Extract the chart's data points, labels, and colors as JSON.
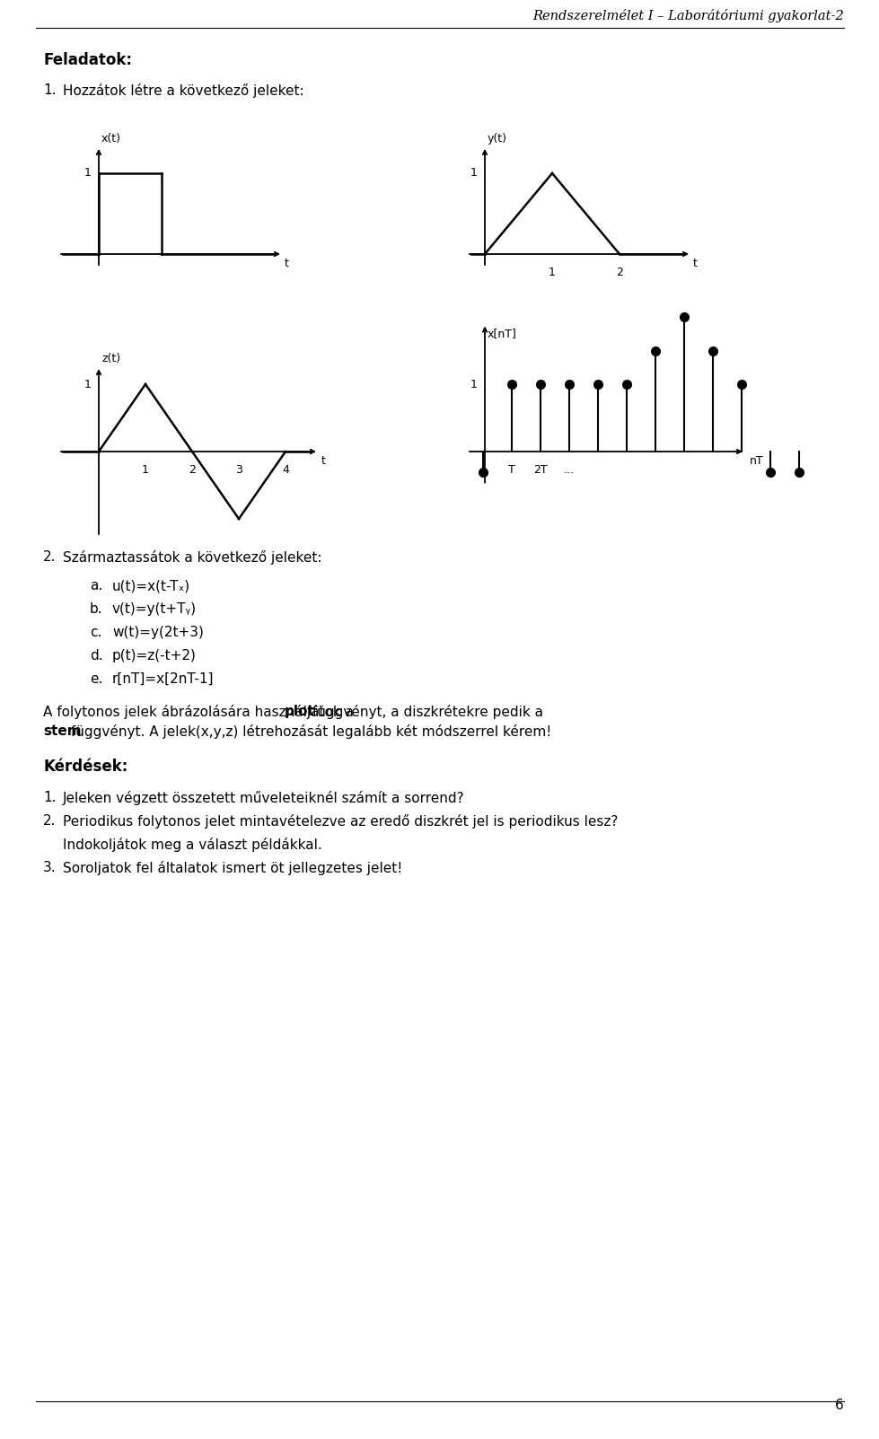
{
  "header": "Rendszerelmélet I – Laborátóriumi gyakorlat-2",
  "page_number": "6",
  "background_color": "#ffffff"
}
